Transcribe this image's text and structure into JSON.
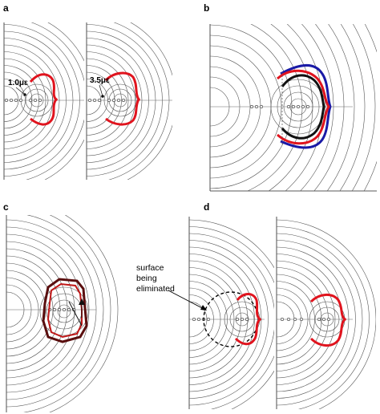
{
  "panels": [
    {
      "id": "a",
      "label": "a"
    },
    {
      "id": "b",
      "label": "b"
    },
    {
      "id": "c",
      "label": "c"
    },
    {
      "id": "d",
      "label": "d"
    }
  ],
  "annotations": {
    "strain_left": "1.0με",
    "strain_right": "3.5με",
    "surface_note_lines": [
      "surface",
      "being",
      "eliminated"
    ]
  },
  "colors": {
    "contour": "#555555",
    "red_surface": "#e0141e",
    "blue_surface": "#1a1aa6",
    "black_surface": "#111111",
    "dark_red_surface": "#7a1414",
    "dashed_circle": "#000000"
  }
}
